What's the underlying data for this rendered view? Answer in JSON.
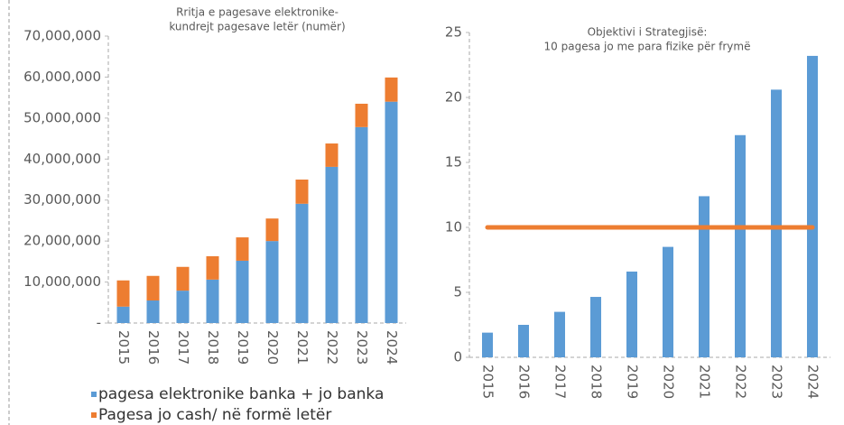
{
  "chart_data": [
    {
      "type": "stacked_bar",
      "title": [
        "Rritja e pagesave elektronike-",
        "kundrejt pagesave letër (numër)"
      ],
      "categories": [
        "2015",
        "2016",
        "2017",
        "2018",
        "2019",
        "2020",
        "2021",
        "2022",
        "2023",
        "2024"
      ],
      "series": [
        {
          "name": "pagesa elektronike banka + jo banka",
          "color": "#5b9bd5",
          "values": [
            4000000,
            5500000,
            7900000,
            10600000,
            15200000,
            20000000,
            29100000,
            38100000,
            47800000,
            54000000
          ]
        },
        {
          "name": "Pagesa jo cash/ në formë letër",
          "color": "#ed7d31",
          "values": [
            6400000,
            6000000,
            5800000,
            5700000,
            5700000,
            5500000,
            5900000,
            5700000,
            5700000,
            5900000
          ]
        }
      ],
      "ylim": [
        0,
        70000000
      ],
      "yticks": [
        {
          "value": 0,
          "label": "-"
        },
        {
          "value": 10000000,
          "label": "10,000,000"
        },
        {
          "value": 20000000,
          "label": "20,000,000"
        },
        {
          "value": 30000000,
          "label": "30,000,000"
        },
        {
          "value": 40000000,
          "label": "40,000,000"
        },
        {
          "value": 50000000,
          "label": "50,000,000"
        },
        {
          "value": 60000000,
          "label": "60,000,000"
        },
        {
          "value": 70000000,
          "label": "70,000,000"
        }
      ],
      "legend": "bottom"
    },
    {
      "type": "bar_line",
      "title": [
        "Objektivi i Strategjisë:",
        "10 pagesa jo me para fizike për frymë"
      ],
      "categories": [
        "2015",
        "2016",
        "2017",
        "2018",
        "2019",
        "2020",
        "2021",
        "2022",
        "2023",
        "2024"
      ],
      "series": [
        {
          "color": "#5b9bd5",
          "kind": "bar",
          "values": [
            1.9,
            2.5,
            3.5,
            4.65,
            6.6,
            8.5,
            12.4,
            17.1,
            20.6,
            23.2
          ]
        },
        {
          "color": "#ed7d31",
          "kind": "line",
          "values": [
            10,
            10,
            10,
            10,
            10,
            10,
            10,
            10,
            10,
            10
          ]
        }
      ],
      "ylim": [
        0,
        25
      ],
      "yticks": [
        0,
        5,
        10,
        15,
        20,
        25
      ]
    }
  ]
}
